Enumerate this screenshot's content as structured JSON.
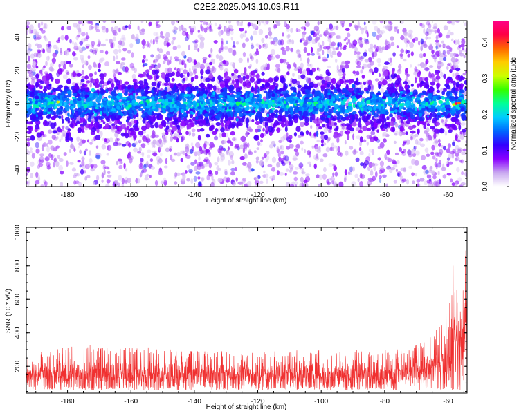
{
  "figure_title": "C2E2.2025.043.10.03.R11",
  "colors": {
    "snr_line": "#f03030",
    "axis": "#000000",
    "spectrogram_low": "#e6d8f5",
    "spectrogram_mid": "#6a00e0"
  },
  "chart_data": [
    {
      "type": "heatmap",
      "title": "C2E2.2025.043.10.03.R11",
      "xlabel": "Height of straight line (km)",
      "ylabel": "Frequency (Hz)",
      "xlim": [
        -193,
        -54
      ],
      "ylim": [
        -50,
        50
      ],
      "x_ticks": [
        -180,
        -160,
        -140,
        -120,
        -100,
        -80,
        -60
      ],
      "y_ticks": [
        -40,
        -20,
        0,
        20,
        40
      ],
      "colorbar": {
        "label": "Normalized spectral amplitude",
        "range": [
          0.0,
          0.46
        ],
        "ticks": [
          0.0,
          0.1,
          0.2,
          0.3,
          0.4
        ],
        "colormap": [
          "#ffffff",
          "#c9a8f0",
          "#8a00ff",
          "#3300ff",
          "#0066ff",
          "#00ccff",
          "#00ff99",
          "#33ff00",
          "#ccff00",
          "#ffcc00",
          "#ff6600",
          "#ff0044",
          "#ff0088"
        ]
      },
      "description": "Dense blobs with high amplitude concentrated in a band around 0 Hz (about -10 to +10 Hz) across all heights; sparse low-amplitude speckle elsewhere. Highest peak (~0.45) near -57 km at ~0 Hz."
    },
    {
      "type": "line",
      "title": "",
      "xlabel": "Height of straight line (km)",
      "ylabel": "SNR (10 * v/v)",
      "xlim": [
        -193,
        -54
      ],
      "ylim": [
        40,
        1030
      ],
      "x_ticks": [
        -180,
        -160,
        -140,
        -120,
        -100,
        -80,
        -60
      ],
      "y_ticks": [
        200,
        400,
        600,
        800,
        1000
      ],
      "series": [
        {
          "x": [
            -193,
            -185,
            -175,
            -165,
            -155,
            -145,
            -135,
            -125,
            -115,
            -105,
            -95,
            -85,
            -75,
            -68,
            -64,
            -61,
            -59,
            -58,
            -57,
            -56,
            -55,
            -54
          ],
          "y_upper": [
            280,
            300,
            330,
            310,
            320,
            300,
            290,
            290,
            300,
            300,
            300,
            300,
            310,
            340,
            420,
            500,
            700,
            1010,
            600,
            820,
            1000,
            860
          ],
          "y_lower": [
            60,
            60,
            60,
            60,
            60,
            60,
            60,
            60,
            60,
            60,
            60,
            60,
            60,
            60,
            60,
            60,
            60,
            60,
            60,
            60,
            60,
            60
          ],
          "y_typical": [
            150,
            150,
            150,
            150,
            150,
            150,
            150,
            150,
            150,
            150,
            150,
            150,
            155,
            170,
            200,
            240,
            320,
            380,
            300,
            350,
            400,
            380
          ]
        }
      ]
    }
  ]
}
